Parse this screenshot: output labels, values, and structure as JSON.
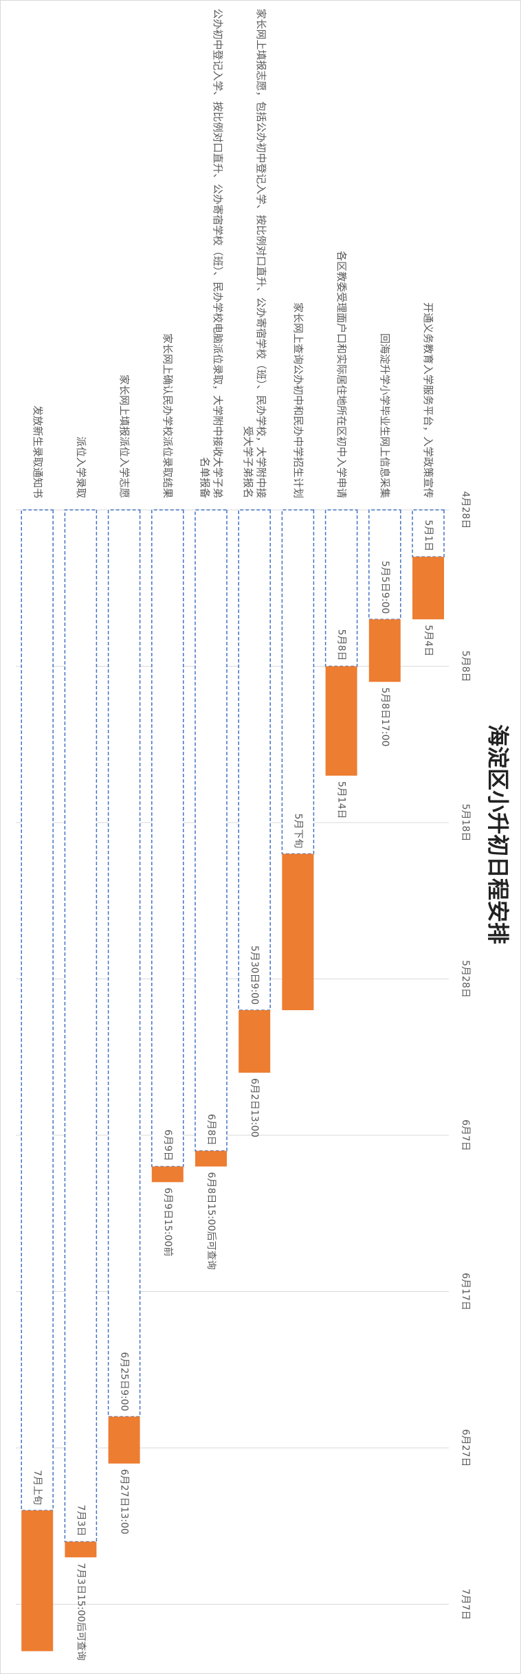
{
  "chart_data": {
    "type": "gantt",
    "title": "海淀区小升初日程安排",
    "categories": [
      "开通义务教育入学服务平台，入学政策宣传",
      "回海淀升学小学毕业生网上信息采集",
      "各区教委受理面户口和实际居住地所在区初中入学申请",
      "家长网上查询公办初中和民办中学招生计划",
      "家长网上填报志愿，包括公办初中登记入学、按比例对口直升、公办寄宿学校（班）、民办学校，大学附中接受大学子弟报名",
      "公办初中登记入学、按比例对口直升、公办寄宿学校（班）、民办学校电脑派位录取，大学附中接收大学子弟名单报备",
      "家长网上确认民办学校派位录取结果",
      "家长网上填报派位入学志愿",
      "派位入学录取",
      "发放新生录取通知书"
    ],
    "series": [
      {
        "color": "#ffffff",
        "edge_color": "#4472c4",
        "values": [
          121,
          125,
          128,
          140,
          150,
          159,
          160,
          176,
          184,
          182
        ],
        "value_labels": [
          "5月1日",
          "5月5日9:00",
          "5月8日",
          "5月下旬",
          "5月30日9:00",
          "6月8日",
          "6月9日",
          "6月25日9:00",
          "7月3日",
          "7月上旬"
        ]
      },
      {
        "color": "#ed7d31",
        "values": [
          4,
          4,
          7,
          10,
          4,
          1,
          1,
          3,
          1,
          9
        ]
      }
    ],
    "end_labels": [
      "5月4日",
      "5月8日17:00",
      "5月14日",
      null,
      "6月2日13:00",
      "6月8日15:00后可查询",
      "6月9日15:00前",
      "6月27日13:00",
      "7月3日15:00后可查询",
      null
    ],
    "xlim": [
      118,
      191
    ],
    "xticks": [
      {
        "value": 118,
        "label": "4月28日"
      },
      {
        "value": 128,
        "label": "5月8日"
      },
      {
        "value": 138,
        "label": "5月18日"
      },
      {
        "value": 148,
        "label": "5月28日"
      },
      {
        "value": 158,
        "label": "6月7日"
      },
      {
        "value": 168,
        "label": "6月17日"
      },
      {
        "value": 178,
        "label": "6月27日"
      },
      {
        "value": 188,
        "label": "7月7日"
      }
    ],
    "grid": true
  }
}
